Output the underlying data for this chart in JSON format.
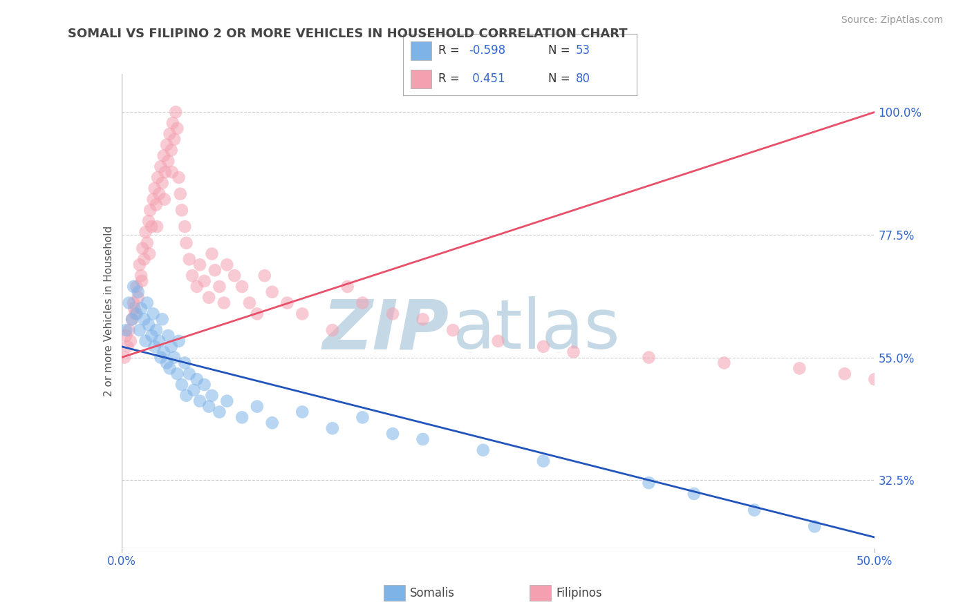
{
  "title": "SOMALI VS FILIPINO 2 OR MORE VEHICLES IN HOUSEHOLD CORRELATION CHART",
  "source_text": "Source: ZipAtlas.com",
  "ylabel": "2 or more Vehicles in Household",
  "xlim": [
    0.0,
    50.0
  ],
  "ylim": [
    20.0,
    107.0
  ],
  "yticks": [
    32.5,
    55.0,
    77.5,
    100.0
  ],
  "ytick_labels": [
    "32.5%",
    "55.0%",
    "77.5%",
    "100.0%"
  ],
  "xtick_labels": [
    "0.0%",
    "50.0%"
  ],
  "somali_R": -0.598,
  "somali_N": 53,
  "filipino_R": 0.451,
  "filipino_N": 80,
  "somali_color": "#7EB3E8",
  "filipino_color": "#F4A0B0",
  "somali_line_color": "#2255BB",
  "filipino_line_color": "#E8506A",
  "legend_labels": [
    "Somalis",
    "Filipinos"
  ],
  "somali_x": [
    0.3,
    0.5,
    0.7,
    0.8,
    1.0,
    1.1,
    1.2,
    1.3,
    1.5,
    1.6,
    1.7,
    1.8,
    2.0,
    2.1,
    2.2,
    2.3,
    2.5,
    2.6,
    2.7,
    2.8,
    3.0,
    3.1,
    3.2,
    3.3,
    3.5,
    3.7,
    3.8,
    4.0,
    4.2,
    4.3,
    4.5,
    4.8,
    5.0,
    5.2,
    5.5,
    5.8,
    6.0,
    6.5,
    7.0,
    8.0,
    9.0,
    10.0,
    12.0,
    14.0,
    16.0,
    18.0,
    20.0,
    24.0,
    28.0,
    35.0,
    38.0,
    42.0,
    46.0
  ],
  "somali_y": [
    60.0,
    65.0,
    62.0,
    68.0,
    63.0,
    67.0,
    60.0,
    64.0,
    62.0,
    58.0,
    65.0,
    61.0,
    59.0,
    63.0,
    57.0,
    60.0,
    58.0,
    55.0,
    62.0,
    56.0,
    54.0,
    59.0,
    53.0,
    57.0,
    55.0,
    52.0,
    58.0,
    50.0,
    54.0,
    48.0,
    52.0,
    49.0,
    51.0,
    47.0,
    50.0,
    46.0,
    48.0,
    45.0,
    47.0,
    44.0,
    46.0,
    43.0,
    45.0,
    42.0,
    44.0,
    41.0,
    40.0,
    38.0,
    36.0,
    32.0,
    30.0,
    27.0,
    24.0
  ],
  "filipino_x": [
    0.2,
    0.4,
    0.5,
    0.6,
    0.7,
    0.8,
    0.9,
    1.0,
    1.1,
    1.2,
    1.3,
    1.4,
    1.5,
    1.6,
    1.7,
    1.8,
    1.9,
    2.0,
    2.1,
    2.2,
    2.3,
    2.4,
    2.5,
    2.6,
    2.7,
    2.8,
    2.9,
    3.0,
    3.1,
    3.2,
    3.3,
    3.4,
    3.5,
    3.6,
    3.7,
    3.8,
    3.9,
    4.0,
    4.2,
    4.3,
    4.5,
    4.7,
    5.0,
    5.2,
    5.5,
    5.8,
    6.0,
    6.2,
    6.5,
    6.8,
    7.0,
    7.5,
    8.0,
    8.5,
    9.0,
    9.5,
    10.0,
    11.0,
    12.0,
    14.0,
    15.0,
    16.0,
    18.0,
    20.0,
    22.0,
    25.0,
    28.0,
    30.0,
    35.0,
    40.0,
    45.0,
    48.0,
    50.0,
    0.3,
    0.85,
    1.35,
    1.85,
    2.35,
    2.85,
    3.35
  ],
  "filipino_y": [
    55.0,
    57.0,
    60.0,
    58.0,
    62.0,
    65.0,
    63.0,
    68.0,
    66.0,
    72.0,
    70.0,
    75.0,
    73.0,
    78.0,
    76.0,
    80.0,
    82.0,
    79.0,
    84.0,
    86.0,
    83.0,
    88.0,
    85.0,
    90.0,
    87.0,
    92.0,
    89.0,
    94.0,
    91.0,
    96.0,
    93.0,
    98.0,
    95.0,
    100.0,
    97.0,
    88.0,
    85.0,
    82.0,
    79.0,
    76.0,
    73.0,
    70.0,
    68.0,
    72.0,
    69.0,
    66.0,
    74.0,
    71.0,
    68.0,
    65.0,
    72.0,
    70.0,
    68.0,
    65.0,
    63.0,
    70.0,
    67.0,
    65.0,
    63.0,
    60.0,
    68.0,
    65.0,
    63.0,
    62.0,
    60.0,
    58.0,
    57.0,
    56.0,
    55.0,
    54.0,
    53.0,
    52.0,
    51.0,
    59.0,
    64.0,
    69.0,
    74.0,
    79.0,
    84.0,
    89.0
  ]
}
